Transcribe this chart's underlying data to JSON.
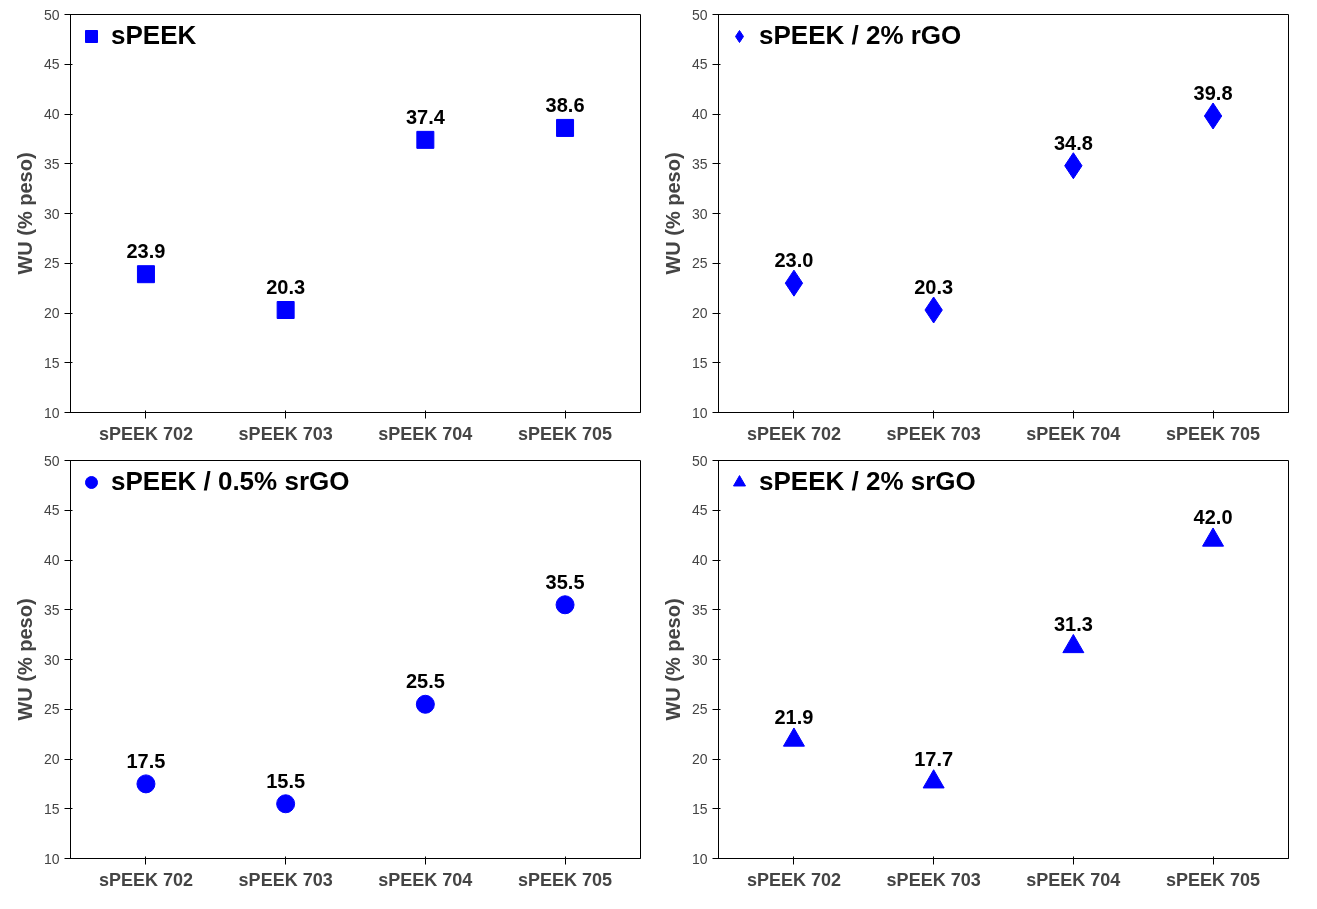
{
  "chart_data": [
    {
      "type": "scatter",
      "categories": [
        "sPEEK 702",
        "sPEEK 703",
        "sPEEK 704",
        "sPEEK 705"
      ],
      "ylabel": "WU (% peso)",
      "ylim": [
        10,
        50
      ],
      "yticks": [
        10,
        15,
        20,
        25,
        30,
        35,
        40,
        45,
        50
      ],
      "marker": "square",
      "legend": "top left",
      "grid": false,
      "series": [
        {
          "name": "sPEEK",
          "color": "#0000ff",
          "values": [
            23.9,
            20.3,
            37.4,
            38.6
          ],
          "value_labels": [
            "23.9",
            "20.3",
            "37.4",
            "38.6"
          ]
        }
      ]
    },
    {
      "type": "scatter",
      "categories": [
        "sPEEK 702",
        "sPEEK 703",
        "sPEEK 704",
        "sPEEK 705"
      ],
      "ylabel": "WU (% peso)",
      "ylim": [
        10,
        50
      ],
      "yticks": [
        10,
        15,
        20,
        25,
        30,
        35,
        40,
        45,
        50
      ],
      "marker": "diamond",
      "legend": "top left",
      "grid": false,
      "series": [
        {
          "name": "sPEEK / 2% rGO",
          "color": "#0000ff",
          "values": [
            23.0,
            20.3,
            34.8,
            39.8
          ],
          "value_labels": [
            "23.0",
            "20.3",
            "34.8",
            "39.8"
          ]
        }
      ]
    },
    {
      "type": "scatter",
      "categories": [
        "sPEEK 702",
        "sPEEK 703",
        "sPEEK 704",
        "sPEEK 705"
      ],
      "ylabel": "WU (% peso)",
      "ylim": [
        10,
        50
      ],
      "yticks": [
        10,
        15,
        20,
        25,
        30,
        35,
        40,
        45,
        50
      ],
      "marker": "circle",
      "legend": "top left",
      "grid": false,
      "series": [
        {
          "name": "sPEEK / 0.5% srGO",
          "color": "#0000ff",
          "values": [
            17.5,
            15.5,
            25.5,
            35.5
          ],
          "value_labels": [
            "17.5",
            "15.5",
            "25.5",
            "35.5"
          ]
        }
      ]
    },
    {
      "type": "scatter",
      "categories": [
        "sPEEK 702",
        "sPEEK 703",
        "sPEEK 704",
        "sPEEK 705"
      ],
      "ylabel": "WU (% peso)",
      "ylim": [
        10,
        50
      ],
      "yticks": [
        10,
        15,
        20,
        25,
        30,
        35,
        40,
        45,
        50
      ],
      "marker": "triangle",
      "legend": "top left",
      "grid": false,
      "series": [
        {
          "name": "sPEEK / 2% srGO",
          "color": "#0000ff",
          "values": [
            21.9,
            17.7,
            31.3,
            42.0
          ],
          "value_labels": [
            "21.9",
            "17.7",
            "31.3",
            "42.0"
          ]
        }
      ]
    }
  ]
}
